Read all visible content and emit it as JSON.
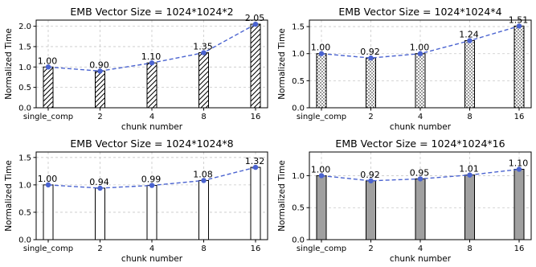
{
  "chart_data": [
    {
      "type": "bar",
      "title": "EMB Vector Size = 1024*1024*2",
      "xlabel": "chunk number",
      "ylabel": "Normalized Time",
      "categories": [
        "single_comp",
        "2",
        "4",
        "8",
        "16"
      ],
      "values": [
        1.0,
        0.9,
        1.1,
        1.35,
        2.05
      ],
      "labels": [
        "1.00",
        "0.90",
        "1.10",
        "1.35",
        "2.05"
      ],
      "ylim": [
        0,
        2.15
      ],
      "yticks": [
        "0.0",
        "0.5",
        "1.0",
        "1.5",
        "2.0"
      ],
      "ytick_values": [
        0,
        0.5,
        1.0,
        1.5,
        2.0
      ],
      "pattern": "hatch-diagonal",
      "line_color": "#4a63d0",
      "grid": true
    },
    {
      "type": "bar",
      "title": "EMB Vector Size = 1024*1024*4",
      "xlabel": "chunk number",
      "ylabel": "Normalized Time",
      "categories": [
        "single_comp",
        "2",
        "4",
        "8",
        "16"
      ],
      "values": [
        1.0,
        0.92,
        1.0,
        1.24,
        1.51
      ],
      "labels": [
        "1.00",
        "0.92",
        "1.00",
        "1.24",
        "1.51"
      ],
      "ylim": [
        0,
        1.62
      ],
      "yticks": [
        "0.0",
        "0.5",
        "1.0",
        "1.5"
      ],
      "ytick_values": [
        0,
        0.5,
        1.0,
        1.5
      ],
      "pattern": "dots",
      "line_color": "#4a63d0",
      "grid": true
    },
    {
      "type": "bar",
      "title": "EMB Vector Size = 1024*1024*8",
      "xlabel": "chunk number",
      "ylabel": "Normalized Time",
      "categories": [
        "single_comp",
        "2",
        "4",
        "8",
        "16"
      ],
      "values": [
        1.0,
        0.94,
        0.99,
        1.08,
        1.32
      ],
      "labels": [
        "1.00",
        "0.94",
        "0.99",
        "1.08",
        "1.32"
      ],
      "ylim": [
        0,
        1.6
      ],
      "yticks": [
        "0.0",
        "0.5",
        "1.0",
        "1.5"
      ],
      "ytick_values": [
        0,
        0.5,
        1.0,
        1.5
      ],
      "pattern": "white",
      "line_color": "#4a63d0",
      "grid": true
    },
    {
      "type": "bar",
      "title": "EMB Vector Size = 1024*1024*16",
      "xlabel": "chunk number",
      "ylabel": "Normalized Time",
      "categories": [
        "single_comp",
        "2",
        "4",
        "8",
        "16"
      ],
      "values": [
        1.0,
        0.92,
        0.95,
        1.01,
        1.1
      ],
      "labels": [
        "1.00",
        "0.92",
        "0.95",
        "1.01",
        "1.10"
      ],
      "ylim": [
        0,
        1.37
      ],
      "yticks": [
        "0.0",
        "0.5",
        "1.0"
      ],
      "ytick_values": [
        0,
        0.5,
        1.0
      ],
      "pattern": "gray",
      "line_color": "#4a63d0",
      "grid": true
    }
  ]
}
